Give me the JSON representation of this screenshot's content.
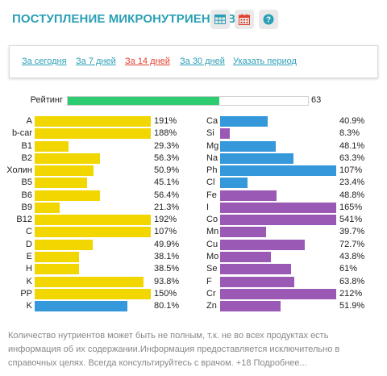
{
  "header": {
    "title": "ПОСТУПЛЕНИЕ МИКРОНУТРИЕНТОВ",
    "icons": [
      "table-icon",
      "calendar-icon",
      "help-icon"
    ],
    "accent_color": "#2a9fb5",
    "calendar_color": "#e2402e"
  },
  "periods": {
    "items": [
      {
        "label": "За сегодня",
        "active": false
      },
      {
        "label": "За 7 дней",
        "active": false
      },
      {
        "label": "За 14 дней",
        "active": true
      },
      {
        "label": "За 30 дней",
        "active": false
      },
      {
        "label": "Указать период",
        "active": false
      }
    ]
  },
  "rating": {
    "label": "Рейтинг",
    "value": "63",
    "fraction": 0.63,
    "color": "#2ecc71"
  },
  "colors": {
    "vitamin": "#f2d600",
    "mineral": "#9b59b6",
    "highlight": "#3498db"
  },
  "vitamins": [
    {
      "name": "A",
      "value": "191%",
      "percent": 191,
      "color": "vitamin"
    },
    {
      "name": "b-car",
      "value": "188%",
      "percent": 188,
      "color": "vitamin"
    },
    {
      "name": "B1",
      "value": "29.3%",
      "percent": 29.3,
      "color": "vitamin"
    },
    {
      "name": "B2",
      "value": "56.3%",
      "percent": 56.3,
      "color": "vitamin"
    },
    {
      "name": "Холин",
      "value": "50.9%",
      "percent": 50.9,
      "color": "vitamin"
    },
    {
      "name": "B5",
      "value": "45.1%",
      "percent": 45.1,
      "color": "vitamin"
    },
    {
      "name": "B6",
      "value": "56.4%",
      "percent": 56.4,
      "color": "vitamin"
    },
    {
      "name": "B9",
      "value": "21.3%",
      "percent": 21.3,
      "color": "vitamin"
    },
    {
      "name": "B12",
      "value": "192%",
      "percent": 192,
      "color": "vitamin"
    },
    {
      "name": "C",
      "value": "107%",
      "percent": 107,
      "color": "vitamin"
    },
    {
      "name": "D",
      "value": "49.9%",
      "percent": 49.9,
      "color": "vitamin"
    },
    {
      "name": "E",
      "value": "38.1%",
      "percent": 38.1,
      "color": "vitamin"
    },
    {
      "name": "H",
      "value": "38.5%",
      "percent": 38.5,
      "color": "vitamin"
    },
    {
      "name": "K",
      "value": "93.8%",
      "percent": 93.8,
      "color": "vitamin"
    },
    {
      "name": "PP",
      "value": "150%",
      "percent": 150,
      "color": "vitamin"
    },
    {
      "name": "K",
      "value": "80.1%",
      "percent": 80.1,
      "color": "highlight"
    }
  ],
  "minerals": [
    {
      "name": "Ca",
      "value": "40.9%",
      "percent": 40.9,
      "color": "highlight"
    },
    {
      "name": "Si",
      "value": "8.3%",
      "percent": 8.3,
      "color": "mineral"
    },
    {
      "name": "Mg",
      "value": "48.1%",
      "percent": 48.1,
      "color": "highlight"
    },
    {
      "name": "Na",
      "value": "63.3%",
      "percent": 63.3,
      "color": "highlight"
    },
    {
      "name": "Ph",
      "value": "107%",
      "percent": 107,
      "color": "highlight"
    },
    {
      "name": "Cl",
      "value": "23.4%",
      "percent": 23.4,
      "color": "highlight"
    },
    {
      "name": "Fe",
      "value": "48.8%",
      "percent": 48.8,
      "color": "mineral"
    },
    {
      "name": "I",
      "value": "165%",
      "percent": 165,
      "color": "mineral"
    },
    {
      "name": "Co",
      "value": "541%",
      "percent": 541,
      "color": "mineral"
    },
    {
      "name": "Mn",
      "value": "39.7%",
      "percent": 39.7,
      "color": "mineral"
    },
    {
      "name": "Cu",
      "value": "72.7%",
      "percent": 72.7,
      "color": "mineral"
    },
    {
      "name": "Mo",
      "value": "43.8%",
      "percent": 43.8,
      "color": "mineral"
    },
    {
      "name": "Se",
      "value": "61%",
      "percent": 61,
      "color": "mineral"
    },
    {
      "name": "F",
      "value": "63.8%",
      "percent": 63.8,
      "color": "mineral"
    },
    {
      "name": "Cr",
      "value": "212%",
      "percent": 212,
      "color": "mineral"
    },
    {
      "name": "Zn",
      "value": "51.9%",
      "percent": 51.9,
      "color": "mineral"
    }
  ],
  "note": {
    "text": "Количество нутриентов может быть не полным, т.к. не во всех продуктах есть информация об их содержании.Информация предоставляется исключительно в справочных целях. Всегда консультируйтесь с врачом. +18",
    "more_label": "Подробнее..."
  }
}
